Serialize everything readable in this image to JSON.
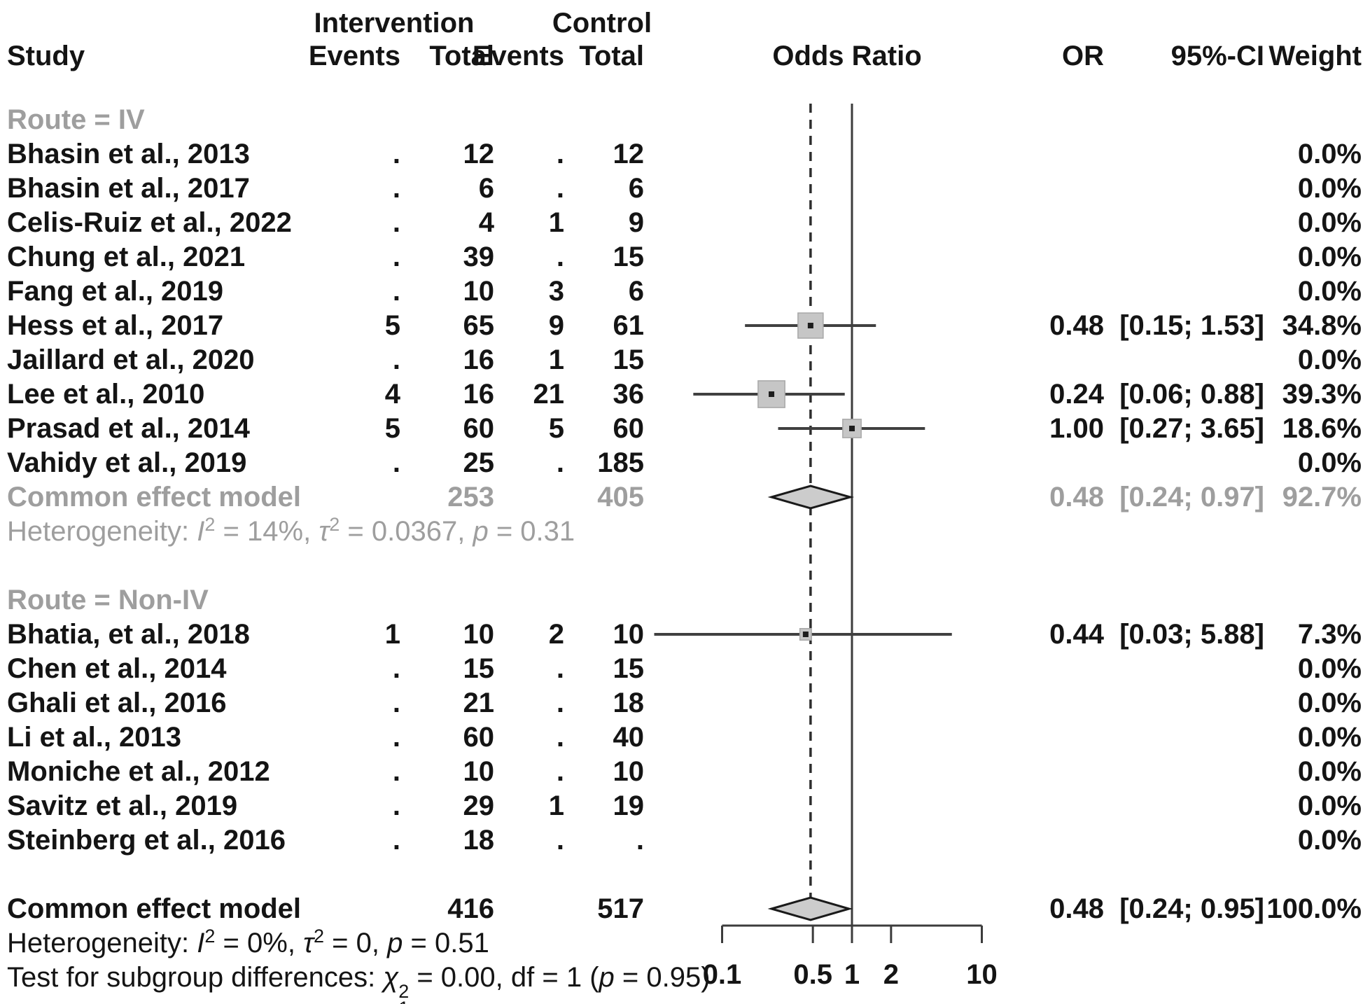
{
  "header": {
    "study": "Study",
    "intervention": "Intervention",
    "control": "Control",
    "events": "Events",
    "total": "Total",
    "plot_title": "Odds Ratio",
    "or": "OR",
    "ci": "95%-CI",
    "weight": "Weight"
  },
  "axis_tick_labels": [
    "0.1",
    "0.5",
    "1",
    "2",
    "10"
  ],
  "colors": {
    "black_text": "#141414",
    "gray_text": "#9e9e9e",
    "line": "#404040",
    "square_fill": "#c6c6c6",
    "square_border": "#a8a8a8",
    "diamond_fill": "#cccccc",
    "diamond_stroke": "#1a1a1a"
  },
  "chart_data": {
    "type": "forest",
    "effect_measure": "Odds Ratio",
    "model": "common effect",
    "x_axis": {
      "scale": "log",
      "ticks": [
        0.1,
        0.5,
        1,
        2,
        10
      ],
      "range": [
        0.1,
        10
      ]
    },
    "reference_value": 1,
    "pooled_value": 0.48,
    "subgroups": [
      {
        "label": "Route = IV",
        "studies": [
          {
            "study": "Bhasin et al., 2013",
            "int_events": ".",
            "int_total": "12",
            "ctl_events": ".",
            "ctl_total": "12",
            "or": null,
            "ci_low": null,
            "ci_high": null,
            "or_text": "",
            "ci_text": "",
            "weight": "0.0%",
            "weight_value": 0.0
          },
          {
            "study": "Bhasin et al., 2017",
            "int_events": ".",
            "int_total": "6",
            "ctl_events": ".",
            "ctl_total": "6",
            "or": null,
            "ci_low": null,
            "ci_high": null,
            "or_text": "",
            "ci_text": "",
            "weight": "0.0%",
            "weight_value": 0.0
          },
          {
            "study": "Celis-Ruiz et al., 2022",
            "int_events": ".",
            "int_total": "4",
            "ctl_events": "1",
            "ctl_total": "9",
            "or": null,
            "ci_low": null,
            "ci_high": null,
            "or_text": "",
            "ci_text": "",
            "weight": "0.0%",
            "weight_value": 0.0
          },
          {
            "study": "Chung et al., 2021",
            "int_events": ".",
            "int_total": "39",
            "ctl_events": ".",
            "ctl_total": "15",
            "or": null,
            "ci_low": null,
            "ci_high": null,
            "or_text": "",
            "ci_text": "",
            "weight": "0.0%",
            "weight_value": 0.0
          },
          {
            "study": "Fang et al., 2019",
            "int_events": ".",
            "int_total": "10",
            "ctl_events": "3",
            "ctl_total": "6",
            "or": null,
            "ci_low": null,
            "ci_high": null,
            "or_text": "",
            "ci_text": "",
            "weight": "0.0%",
            "weight_value": 0.0
          },
          {
            "study": "Hess et al., 2017",
            "int_events": "5",
            "int_total": "65",
            "ctl_events": "9",
            "ctl_total": "61",
            "or": 0.48,
            "ci_low": 0.15,
            "ci_high": 1.53,
            "or_text": "0.48",
            "ci_text": "[0.15; 1.53]",
            "weight": "34.8%",
            "weight_value": 34.8
          },
          {
            "study": "Jaillard et al., 2020",
            "int_events": ".",
            "int_total": "16",
            "ctl_events": "1",
            "ctl_total": "15",
            "or": null,
            "ci_low": null,
            "ci_high": null,
            "or_text": "",
            "ci_text": "",
            "weight": "0.0%",
            "weight_value": 0.0
          },
          {
            "study": "Lee et al., 2010",
            "int_events": "4",
            "int_total": "16",
            "ctl_events": "21",
            "ctl_total": "36",
            "or": 0.24,
            "ci_low": 0.06,
            "ci_high": 0.88,
            "or_text": "0.24",
            "ci_text": "[0.06; 0.88]",
            "weight": "39.3%",
            "weight_value": 39.3
          },
          {
            "study": "Prasad et al., 2014",
            "int_events": "5",
            "int_total": "60",
            "ctl_events": "5",
            "ctl_total": "60",
            "or": 1.0,
            "ci_low": 0.27,
            "ci_high": 3.65,
            "or_text": "1.00",
            "ci_text": "[0.27; 3.65]",
            "weight": "18.6%",
            "weight_value": 18.6
          },
          {
            "study": "Vahidy et al., 2019",
            "int_events": ".",
            "int_total": "25",
            "ctl_events": ".",
            "ctl_total": "185",
            "or": null,
            "ci_low": null,
            "ci_high": null,
            "or_text": "",
            "ci_text": "",
            "weight": "0.0%",
            "weight_value": 0.0
          }
        ],
        "pooled": {
          "label": "Common effect model",
          "int_total": "253",
          "ctl_total": "405",
          "or": 0.48,
          "ci_low": 0.24,
          "ci_high": 0.97,
          "or_text": "0.48",
          "ci_text": "[0.24; 0.97]",
          "weight": "92.7%"
        },
        "heterogeneity": [
          {
            "t": "Heterogeneity: "
          },
          {
            "t": "I",
            "italic": true
          },
          {
            "t": "2",
            "sup": true
          },
          {
            "t": " = 14%, "
          },
          {
            "t": "τ",
            "italic": true
          },
          {
            "t": "2",
            "sup": true
          },
          {
            "t": " = 0.0367, "
          },
          {
            "t": "p",
            "italic": true
          },
          {
            "t": " = 0.31"
          }
        ]
      },
      {
        "label": "Route = Non-IV",
        "studies": [
          {
            "study": "Bhatia, et al., 2018",
            "int_events": "1",
            "int_total": "10",
            "ctl_events": "2",
            "ctl_total": "10",
            "or": 0.44,
            "ci_low": 0.03,
            "ci_high": 5.88,
            "or_text": "0.44",
            "ci_text": "[0.03; 5.88]",
            "weight": "7.3%",
            "weight_value": 7.3
          },
          {
            "study": "Chen et al., 2014",
            "int_events": ".",
            "int_total": "15",
            "ctl_events": ".",
            "ctl_total": "15",
            "or": null,
            "ci_low": null,
            "ci_high": null,
            "or_text": "",
            "ci_text": "",
            "weight": "0.0%",
            "weight_value": 0.0
          },
          {
            "study": "Ghali et al., 2016",
            "int_events": ".",
            "int_total": "21",
            "ctl_events": ".",
            "ctl_total": "18",
            "or": null,
            "ci_low": null,
            "ci_high": null,
            "or_text": "",
            "ci_text": "",
            "weight": "0.0%",
            "weight_value": 0.0
          },
          {
            "study": "Li et al., 2013",
            "int_events": ".",
            "int_total": "60",
            "ctl_events": ".",
            "ctl_total": "40",
            "or": null,
            "ci_low": null,
            "ci_high": null,
            "or_text": "",
            "ci_text": "",
            "weight": "0.0%",
            "weight_value": 0.0
          },
          {
            "study": "Moniche et al., 2012",
            "int_events": ".",
            "int_total": "10",
            "ctl_events": ".",
            "ctl_total": "10",
            "or": null,
            "ci_low": null,
            "ci_high": null,
            "or_text": "",
            "ci_text": "",
            "weight": "0.0%",
            "weight_value": 0.0
          },
          {
            "study": "Savitz et al., 2019",
            "int_events": ".",
            "int_total": "29",
            "ctl_events": "1",
            "ctl_total": "19",
            "or": null,
            "ci_low": null,
            "ci_high": null,
            "or_text": "",
            "ci_text": "",
            "weight": "0.0%",
            "weight_value": 0.0
          },
          {
            "study": "Steinberg et al., 2016",
            "int_events": ".",
            "int_total": "18",
            "ctl_events": ".",
            "ctl_total": ".",
            "or": null,
            "ci_low": null,
            "ci_high": null,
            "or_text": "",
            "ci_text": "",
            "weight": "0.0%",
            "weight_value": 0.0
          }
        ],
        "pooled": null,
        "heterogeneity": null
      }
    ],
    "overall": {
      "label": "Common effect model",
      "int_total": "416",
      "ctl_total": "517",
      "or": 0.48,
      "ci_low": 0.24,
      "ci_high": 0.95,
      "or_text": "0.48",
      "ci_text": "[0.24; 0.95]",
      "weight": "100.0%"
    },
    "overall_heterogeneity": [
      {
        "t": "Heterogeneity: "
      },
      {
        "t": "I",
        "italic": true
      },
      {
        "t": "2",
        "sup": true
      },
      {
        "t": " = 0%, "
      },
      {
        "t": "τ",
        "italic": true
      },
      {
        "t": "2",
        "sup": true
      },
      {
        "t": " = 0, "
      },
      {
        "t": "p",
        "italic": true
      },
      {
        "t": " = 0.51"
      }
    ],
    "subgroup_test": [
      {
        "t": "Test for subgroup differences: "
      },
      {
        "t": "χ",
        "italic": true
      },
      {
        "supsub": [
          "2",
          "1"
        ]
      },
      {
        "t": " = 0.00, df = 1 ("
      },
      {
        "t": "p",
        "italic": true
      },
      {
        "t": " = 0.95)"
      }
    ]
  }
}
